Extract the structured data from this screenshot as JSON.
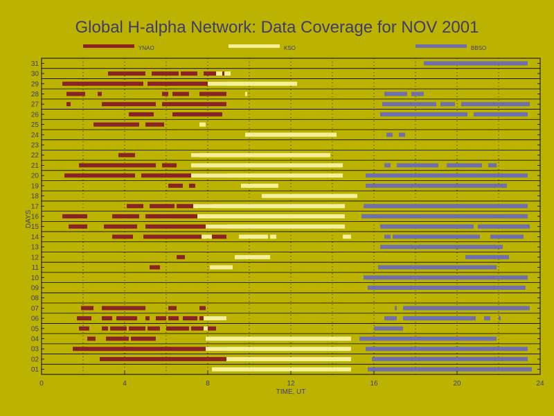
{
  "chart_data": {
    "type": "timeline",
    "title": "Global H-alpha Network: Data Coverage for NOV 2001",
    "xlabel": "TIME, UT",
    "ylabel": "DAYS",
    "xlim": [
      0,
      24
    ],
    "ylim": [
      0.5,
      31.5
    ],
    "x_ticks": [
      0,
      4,
      8,
      12,
      16,
      20,
      24
    ],
    "y_tick_labels": [
      "01",
      "02",
      "03",
      "04",
      "05",
      "06",
      "07",
      "08",
      "09",
      "10",
      "11",
      "12",
      "13",
      "14",
      "15",
      "16",
      "17",
      "18",
      "19",
      "20",
      "21",
      "22",
      "23",
      "24",
      "25",
      "26",
      "27",
      "28",
      "29",
      "30",
      "31"
    ],
    "grid": true,
    "legend_position": "top",
    "series": [
      {
        "name": "YNAO",
        "color": "#8b2226",
        "intervals": {
          "02": [
            [
              2.8,
              8.9
            ]
          ],
          "03": [
            [
              1.5,
              8.9
            ]
          ],
          "04": [
            [
              2.2,
              2.6
            ],
            [
              3.1,
              4.2
            ],
            [
              4.3,
              5.5
            ]
          ],
          "05": [
            [
              1.8,
              2.3
            ],
            [
              2.9,
              3.2
            ],
            [
              3.3,
              4.1
            ],
            [
              4.2,
              5.0
            ],
            [
              5.1,
              5.7
            ],
            [
              6.0,
              7.1
            ],
            [
              7.2,
              8.4
            ]
          ],
          "06": [
            [
              1.7,
              2.4
            ],
            [
              2.9,
              3.4
            ],
            [
              3.6,
              4.6
            ],
            [
              5.0,
              5.2
            ],
            [
              5.5,
              6.0
            ],
            [
              6.1,
              6.6
            ],
            [
              6.8,
              7.5
            ],
            [
              7.6,
              8.9
            ]
          ],
          "07": [
            [
              1.9,
              2.5
            ],
            [
              2.9,
              5.0
            ],
            [
              6.1,
              6.5
            ],
            [
              7.6,
              7.9
            ]
          ],
          "11": [
            [
              5.2,
              5.7
            ]
          ],
          "12": [
            [
              6.5,
              6.9
            ]
          ],
          "14": [
            [
              3.4,
              4.4
            ],
            [
              4.9,
              8.9
            ]
          ],
          "15": [
            [
              1.3,
              2.2
            ],
            [
              3.0,
              4.6
            ],
            [
              5.0,
              8.9
            ]
          ],
          "16": [
            [
              1.0,
              2.2
            ],
            [
              3.4,
              4.7
            ],
            [
              5.0,
              8.9
            ]
          ],
          "17": [
            [
              4.1,
              4.9
            ],
            [
              5.2,
              6.4
            ],
            [
              6.5,
              7.4
            ],
            [
              7.5,
              8.2
            ]
          ],
          "19": [
            [
              6.1,
              6.8
            ],
            [
              7.1,
              7.4
            ]
          ],
          "20": [
            [
              1.1,
              4.5
            ],
            [
              4.8,
              8.9
            ]
          ],
          "21": [
            [
              1.8,
              5.5
            ],
            [
              5.8,
              6.5
            ]
          ],
          "22": [
            [
              3.7,
              4.5
            ],
            [
              7.2,
              7.6
            ]
          ],
          "25": [
            [
              2.5,
              4.7
            ],
            [
              5.0,
              5.9
            ]
          ],
          "26": [
            [
              4.2,
              5.4
            ],
            [
              6.3,
              8.7
            ]
          ],
          "27": [
            [
              1.2,
              1.4
            ],
            [
              2.9,
              5.5
            ],
            [
              5.8,
              8.9
            ]
          ],
          "28": [
            [
              1.2,
              2.1
            ],
            [
              2.7,
              2.9
            ],
            [
              5.8,
              6.1
            ],
            [
              6.3,
              7.1
            ],
            [
              7.6,
              8.9
            ]
          ],
          "29": [
            [
              1.0,
              4.9
            ],
            [
              5.1,
              8.9
            ]
          ],
          "30": [
            [
              3.2,
              5.0
            ],
            [
              5.3,
              6.6
            ],
            [
              6.7,
              7.5
            ],
            [
              7.8,
              8.9
            ]
          ]
        }
      },
      {
        "name": "KSO",
        "color": "#f4f09a",
        "intervals": {
          "01": [
            [
              8.2,
              14.9
            ]
          ],
          "02": [
            [
              8.9,
              14.9
            ]
          ],
          "03": [
            [
              7.9,
              14.9
            ]
          ],
          "04": [
            [
              7.9,
              14.9
            ]
          ],
          "05": [
            [
              7.8,
              8.0
            ]
          ],
          "06": [
            [
              7.8,
              8.9
            ]
          ],
          "11": [
            [
              8.1,
              9.2
            ]
          ],
          "12": [
            [
              9.3,
              11.0
            ]
          ],
          "14": [
            [
              7.7,
              8.2
            ],
            [
              9.5,
              10.9
            ],
            [
              11.0,
              11.3
            ],
            [
              14.5,
              14.9
            ]
          ],
          "15": [
            [
              7.9,
              14.6
            ]
          ],
          "16": [
            [
              7.5,
              14.6
            ]
          ],
          "17": [
            [
              7.3,
              14.6
            ]
          ],
          "18": [
            [
              10.6,
              15.2
            ]
          ],
          "19": [
            [
              9.6,
              11.4
            ]
          ],
          "20": [
            [
              7.2,
              14.5
            ]
          ],
          "21": [
            [
              7.2,
              14.5
            ]
          ],
          "22": [
            [
              7.2,
              13.9
            ]
          ],
          "24": [
            [
              9.8,
              14.2
            ]
          ],
          "25": [
            [
              7.6,
              7.9
            ]
          ],
          "28": [
            [
              9.8,
              9.9
            ]
          ],
          "29": [
            [
              8.0,
              12.3
            ]
          ],
          "30": [
            [
              8.4,
              8.7
            ],
            [
              8.8,
              9.1
            ]
          ]
        }
      },
      {
        "name": "BBSO",
        "color": "#6f6fae",
        "intervals": {
          "01": [
            [
              15.7,
              23.6
            ]
          ],
          "02": [
            [
              15.9,
              23.4
            ]
          ],
          "03": [
            [
              15.6,
              23.4
            ]
          ],
          "04": [
            [
              15.3,
              21.9
            ]
          ],
          "05": [
            [
              16.0,
              17.4
            ]
          ],
          "06": [
            [
              16.5,
              17.1
            ],
            [
              17.4,
              20.9
            ],
            [
              21.3,
              21.6
            ],
            [
              22.0,
              22.1
            ]
          ],
          "07": [
            [
              17.0,
              17.1
            ],
            [
              17.4,
              23.5
            ]
          ],
          "09": [
            [
              15.7,
              23.3
            ]
          ],
          "10": [
            [
              15.5,
              23.4
            ]
          ],
          "11": [
            [
              16.2,
              21.9
            ]
          ],
          "12": [
            [
              20.4,
              22.5
            ]
          ],
          "13": [
            [
              16.3,
              22.2
            ]
          ],
          "14": [
            [
              16.5,
              16.8
            ],
            [
              16.9,
              21.1
            ],
            [
              21.6,
              23.2
            ]
          ],
          "15": [
            [
              16.3,
              20.8
            ],
            [
              21.0,
              23.5
            ]
          ],
          "16": [
            [
              15.4,
              23.4
            ]
          ],
          "17": [
            [
              15.5,
              23.4
            ]
          ],
          "19": [
            [
              15.6,
              22.4
            ]
          ],
          "20": [
            [
              15.6,
              23.4
            ]
          ],
          "21": [
            [
              16.5,
              16.8
            ],
            [
              17.1,
              19.1
            ],
            [
              19.5,
              21.2
            ],
            [
              21.5,
              21.9
            ]
          ],
          "26": [
            [
              16.3,
              20.5
            ],
            [
              20.8,
              23.4
            ]
          ],
          "27": [
            [
              16.4,
              19.0
            ],
            [
              19.2,
              19.9
            ],
            [
              20.2,
              23.5
            ]
          ],
          "28": [
            [
              16.5,
              17.6
            ],
            [
              17.8,
              18.4
            ]
          ],
          "31": [
            [
              18.4,
              23.4
            ]
          ],
          "24": [
            [
              16.6,
              16.9
            ],
            [
              17.2,
              17.5
            ]
          ],
          "08": [],
          "18": []
        }
      }
    ]
  }
}
